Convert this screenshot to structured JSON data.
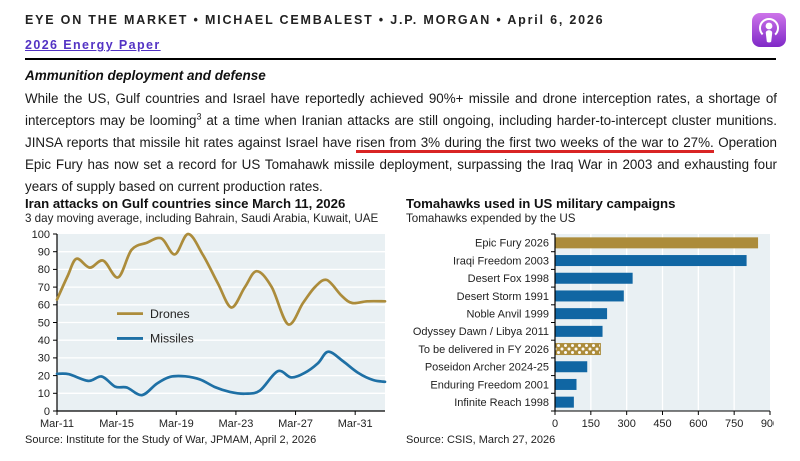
{
  "header": {
    "title": "EYE ON THE MARKET • MICHAEL CEMBALEST • J.P. MORGAN • April 6, 2026",
    "link_label": "2026 Energy Paper",
    "podcast_icon": "apple-podcasts-icon"
  },
  "article": {
    "heading": "Ammunition deployment and defense",
    "paragraph_segments": [
      {
        "style": "normal",
        "text": "While the US, Gulf countries and Israel have reportedly achieved 90%+ missile and drone interception rates, a shortage of interceptors may be looming"
      },
      {
        "style": "superscript",
        "text": "3"
      },
      {
        "style": "normal",
        "text": " at a time when Iranian attacks are still ongoing, including harder-to-intercept cluster munitions.  JINSA reports that missile hit rates against Israel have "
      },
      {
        "style": "red-underline",
        "text": "risen from 3% during the first two weeks of the war to 27%."
      },
      {
        "style": "normal",
        "text": "  Operation Epic Fury has now set a record for US Tomahawk missile deployment, surpassing the Iraq War in 2003 and exhausting four years of supply based on current production rates."
      }
    ]
  },
  "colors": {
    "accent_gold": "#ac8c3b",
    "line_blue": "#1e70a5",
    "bar_blue": "#1066a3",
    "plot_background": "#e9f0f3",
    "grid_white": "#ffffff",
    "red_underline": "#d92424",
    "link_purple": "#5333c4"
  },
  "chart_data": [
    {
      "type": "line",
      "title": "Iran attacks on Gulf countries since March 11, 2026",
      "subtitle": "3 day moving average, including Bahrain, Saudi Arabia, Kuwait, UAE",
      "source": "Source: Institute for the Study of War, JPMAM, April 2, 2026",
      "x_unit": "days since Mar-11",
      "x_range": [
        0,
        22
      ],
      "x_ticks": [
        0,
        4,
        8,
        12,
        16,
        20
      ],
      "x_tick_labels": [
        "Mar-11",
        "Mar-15",
        "Mar-19",
        "Mar-23",
        "Mar-27",
        "Mar-31"
      ],
      "ylim": [
        0,
        100
      ],
      "y_ticks": [
        0,
        10,
        20,
        30,
        40,
        50,
        60,
        70,
        80,
        90,
        100
      ],
      "grid": "horizontal-white",
      "legend_position": "inside-upper-left",
      "legend_anchor_values": [
        55,
        41
      ],
      "series": [
        {
          "name": "Drones",
          "color": "#ac8c3b",
          "points": [
            [
              0,
              63
            ],
            [
              0.7,
              76
            ],
            [
              1.3,
              86
            ],
            [
              2.2,
              81
            ],
            [
              3.1,
              85
            ],
            [
              4.1,
              75.5
            ],
            [
              5,
              91
            ],
            [
              6,
              95
            ],
            [
              7,
              97.5
            ],
            [
              7.9,
              88.5
            ],
            [
              8.8,
              100
            ],
            [
              9.8,
              88
            ],
            [
              10.8,
              72
            ],
            [
              11.7,
              58.5
            ],
            [
              12.6,
              70
            ],
            [
              13.4,
              79
            ],
            [
              14.4,
              70
            ],
            [
              15.5,
              49
            ],
            [
              16.5,
              61
            ],
            [
              17.3,
              70
            ],
            [
              18.1,
              74
            ],
            [
              19.1,
              65
            ],
            [
              19.8,
              61
            ],
            [
              20.8,
              62
            ],
            [
              22,
              62
            ]
          ]
        },
        {
          "name": "Missiles",
          "color": "#1e70a5",
          "points": [
            [
              0,
              21
            ],
            [
              0.8,
              20.8
            ],
            [
              2.1,
              17
            ],
            [
              3,
              19.5
            ],
            [
              3.9,
              13.8
            ],
            [
              4.7,
              13.2
            ],
            [
              5.7,
              9
            ],
            [
              6.7,
              15.5
            ],
            [
              7.6,
              19.3
            ],
            [
              8.6,
              19.6
            ],
            [
              9.6,
              17.8
            ],
            [
              10.6,
              13.5
            ],
            [
              11.6,
              10.8
            ],
            [
              12.6,
              9.8
            ],
            [
              13.6,
              11.5
            ],
            [
              14.8,
              22.5
            ],
            [
              15.7,
              19
            ],
            [
              16.6,
              21.5
            ],
            [
              17.5,
              27
            ],
            [
              18.2,
              33.5
            ],
            [
              19.2,
              28
            ],
            [
              20.2,
              21.5
            ],
            [
              21.2,
              17.5
            ],
            [
              22,
              16.5
            ]
          ]
        }
      ]
    },
    {
      "type": "bar",
      "orientation": "horizontal",
      "title": "Tomahawks used in US military campaigns",
      "subtitle": "Tomahawks expended by the US",
      "source": "Source: CSIS, March 27, 2026",
      "categories": [
        "Epic Fury 2026",
        "Iraqi Freedom 2003",
        "Desert Fox 1998",
        "Desert Storm 1991",
        "Noble Anvil 1999",
        "Odyssey Dawn / Libya 2011",
        "To be delivered in FY 2026",
        "Poseidon Archer 2024-25",
        "Enduring Freedom 2001",
        "Infinite Reach 1998"
      ],
      "values": [
        850,
        802,
        325,
        288,
        218,
        199,
        190,
        135,
        90,
        79
      ],
      "bar_styles": [
        "gold",
        "blue",
        "blue",
        "blue",
        "blue",
        "blue",
        "gold-dotted",
        "blue",
        "blue",
        "blue"
      ],
      "xlim": [
        0,
        900
      ],
      "x_ticks": [
        0,
        150,
        300,
        450,
        600,
        750,
        900
      ],
      "grid": "vertical-white"
    }
  ]
}
